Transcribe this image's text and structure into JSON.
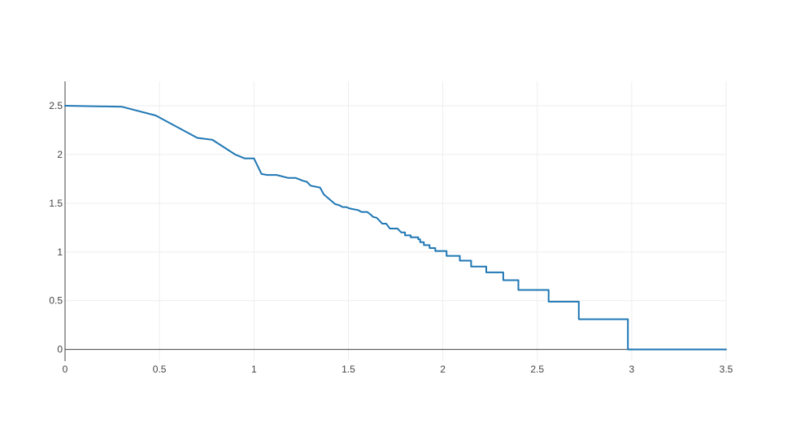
{
  "chart_data": {
    "type": "line",
    "title": "",
    "xlabel": "",
    "ylabel": "",
    "xlim": [
      0,
      3.5
    ],
    "ylim": [
      -0.12,
      2.75
    ],
    "x_ticks": [
      "0",
      "0.5",
      "1",
      "1.5",
      "2",
      "2.5",
      "3",
      "3.5"
    ],
    "y_ticks": [
      "0",
      "0.5",
      "1",
      "1.5",
      "2",
      "2.5"
    ],
    "grid": true,
    "legend": "none",
    "series": [
      {
        "color": "#1f77b4",
        "points": [
          [
            0,
            2.5
          ],
          [
            0.3,
            2.49
          ],
          [
            0.48,
            2.4
          ],
          [
            0.7,
            2.17
          ],
          [
            0.78,
            2.15
          ],
          [
            0.9,
            2.0
          ],
          [
            0.95,
            1.96
          ],
          [
            1.0,
            1.96
          ],
          [
            1.04,
            1.8
          ],
          [
            1.07,
            1.79
          ],
          [
            1.12,
            1.79
          ],
          [
            1.18,
            1.76
          ],
          [
            1.22,
            1.76
          ],
          [
            1.26,
            1.73
          ],
          [
            1.28,
            1.72
          ],
          [
            1.3,
            1.68
          ],
          [
            1.35,
            1.66
          ],
          [
            1.37,
            1.59
          ],
          [
            1.43,
            1.49
          ],
          [
            1.45,
            1.48
          ],
          [
            1.47,
            1.46
          ],
          [
            1.49,
            1.46
          ],
          [
            1.5,
            1.45
          ],
          [
            1.52,
            1.44
          ],
          [
            1.55,
            1.43
          ],
          [
            1.57,
            1.41
          ],
          [
            1.6,
            1.41
          ],
          [
            1.62,
            1.38
          ],
          [
            1.63,
            1.36
          ],
          [
            1.65,
            1.35
          ],
          [
            1.67,
            1.31
          ],
          [
            1.68,
            1.29
          ],
          [
            1.7,
            1.29
          ],
          [
            1.72,
            1.24
          ],
          [
            1.75,
            1.24
          ],
          [
            1.76,
            1.24
          ],
          [
            1.77,
            1.22
          ],
          [
            1.78,
            1.2
          ],
          [
            1.8,
            1.2
          ],
          [
            1.8,
            1.17
          ],
          [
            1.83,
            1.17
          ],
          [
            1.83,
            1.15
          ],
          [
            1.87,
            1.15
          ],
          [
            1.87,
            1.13
          ],
          [
            1.88,
            1.13
          ],
          [
            1.88,
            1.1
          ],
          [
            1.9,
            1.1
          ],
          [
            1.9,
            1.07
          ],
          [
            1.93,
            1.07
          ],
          [
            1.93,
            1.04
          ],
          [
            1.96,
            1.04
          ],
          [
            1.96,
            1.01
          ],
          [
            2.02,
            1.01
          ],
          [
            2.02,
            0.96
          ],
          [
            2.09,
            0.96
          ],
          [
            2.09,
            0.91
          ],
          [
            2.15,
            0.91
          ],
          [
            2.15,
            0.85
          ],
          [
            2.23,
            0.85
          ],
          [
            2.23,
            0.79
          ],
          [
            2.32,
            0.79
          ],
          [
            2.32,
            0.71
          ],
          [
            2.4,
            0.71
          ],
          [
            2.4,
            0.61
          ],
          [
            2.56,
            0.61
          ],
          [
            2.56,
            0.49
          ],
          [
            2.72,
            0.49
          ],
          [
            2.72,
            0.31
          ],
          [
            2.98,
            0.31
          ],
          [
            2.98,
            0.0
          ],
          [
            3.5,
            0.0
          ]
        ]
      }
    ]
  }
}
